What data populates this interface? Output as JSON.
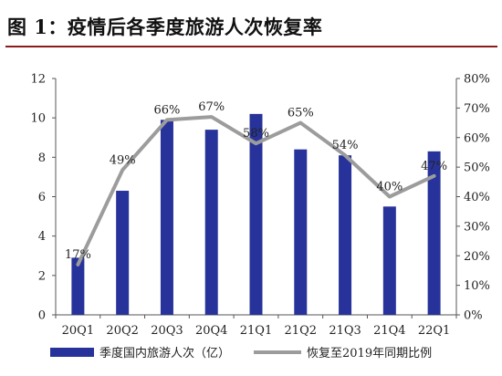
{
  "figure_title": "图 1：疫情后各季度旅游人次恢复率",
  "colors": {
    "bars": "#27339a",
    "line": "#9c9c9c",
    "title_rule": "#8a1c1c",
    "axis": "#555555"
  },
  "chart_data": {
    "type": "bar+line",
    "categories": [
      "20Q1",
      "20Q2",
      "20Q3",
      "20Q4",
      "21Q1",
      "21Q2",
      "21Q3",
      "21Q4",
      "22Q1"
    ],
    "series": [
      {
        "name": "季度国内旅游人次（亿）",
        "type": "bar",
        "axis": "left",
        "values": [
          2.9,
          6.3,
          9.9,
          9.4,
          10.2,
          8.4,
          8.1,
          5.5,
          8.3
        ]
      },
      {
        "name": "恢复至2019年同期比例",
        "type": "line",
        "axis": "right",
        "values": [
          0.17,
          0.49,
          0.66,
          0.67,
          0.58,
          0.65,
          0.54,
          0.4,
          0.47
        ],
        "data_labels": [
          "17%",
          "49%",
          "66%",
          "67%",
          "58%",
          "65%",
          "54%",
          "40%",
          "47%"
        ]
      }
    ],
    "ylim_left": [
      0,
      12
    ],
    "yticks_left": [
      "0",
      "2",
      "4",
      "6",
      "8",
      "10",
      "12"
    ],
    "ylim_right": [
      0,
      0.8
    ],
    "yticks_right": [
      "0%",
      "10%",
      "20%",
      "30%",
      "40%",
      "50%",
      "60%",
      "70%",
      "80%"
    ],
    "grid": false,
    "legend_position": "bottom"
  }
}
